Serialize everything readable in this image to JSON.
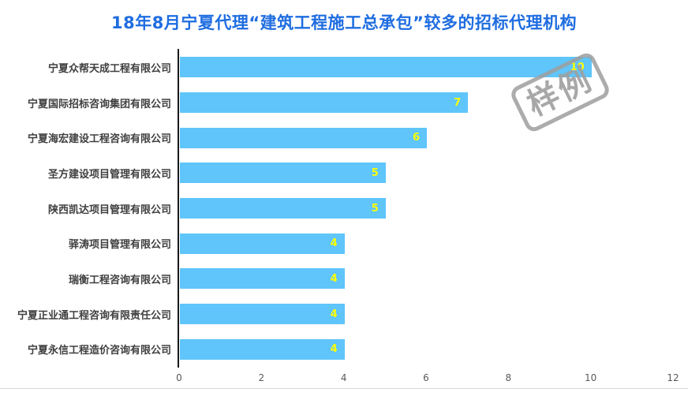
{
  "title": "18年8月宁夏代理“建筑工程施工总承包”较多的招标代理机构",
  "watermark": {
    "text": "样例"
  },
  "colors": {
    "title": "#1f6de0",
    "bar": "#5fc5fa",
    "value_label": "#ffff00",
    "category_label": "#3f3f3f",
    "tick_label": "#595959",
    "axis_line": "#1a1a1a",
    "watermark": "#9e9e9e",
    "bottom_border": "#d9d9d9"
  },
  "chart_data": {
    "type": "bar",
    "orientation": "horizontal",
    "title": "18年8月宁夏代理“建筑工程施工总承包”较多的招标代理机构",
    "categories": [
      "宁夏众帮天成工程有限公司",
      "宁夏国际招标咨询集团有限公司",
      "宁夏海宏建设工程咨询有限公司",
      "圣方建设项目管理有限公司",
      "陕西凯达项目管理有限公司",
      "驿涛项目管理有限公司",
      "瑞衡工程咨询有限公司",
      "宁夏正业通工程咨询有限责任公司",
      "宁夏永信工程造价咨询有限公司"
    ],
    "values": [
      10,
      7,
      6,
      5,
      5,
      4,
      4,
      4,
      4
    ],
    "xlabel": "",
    "ylabel": "",
    "xlim": [
      0,
      12
    ],
    "xticks": [
      0,
      2,
      4,
      6,
      8,
      10,
      12
    ],
    "grid": false,
    "legend": "none",
    "value_labels": "inside-end"
  }
}
